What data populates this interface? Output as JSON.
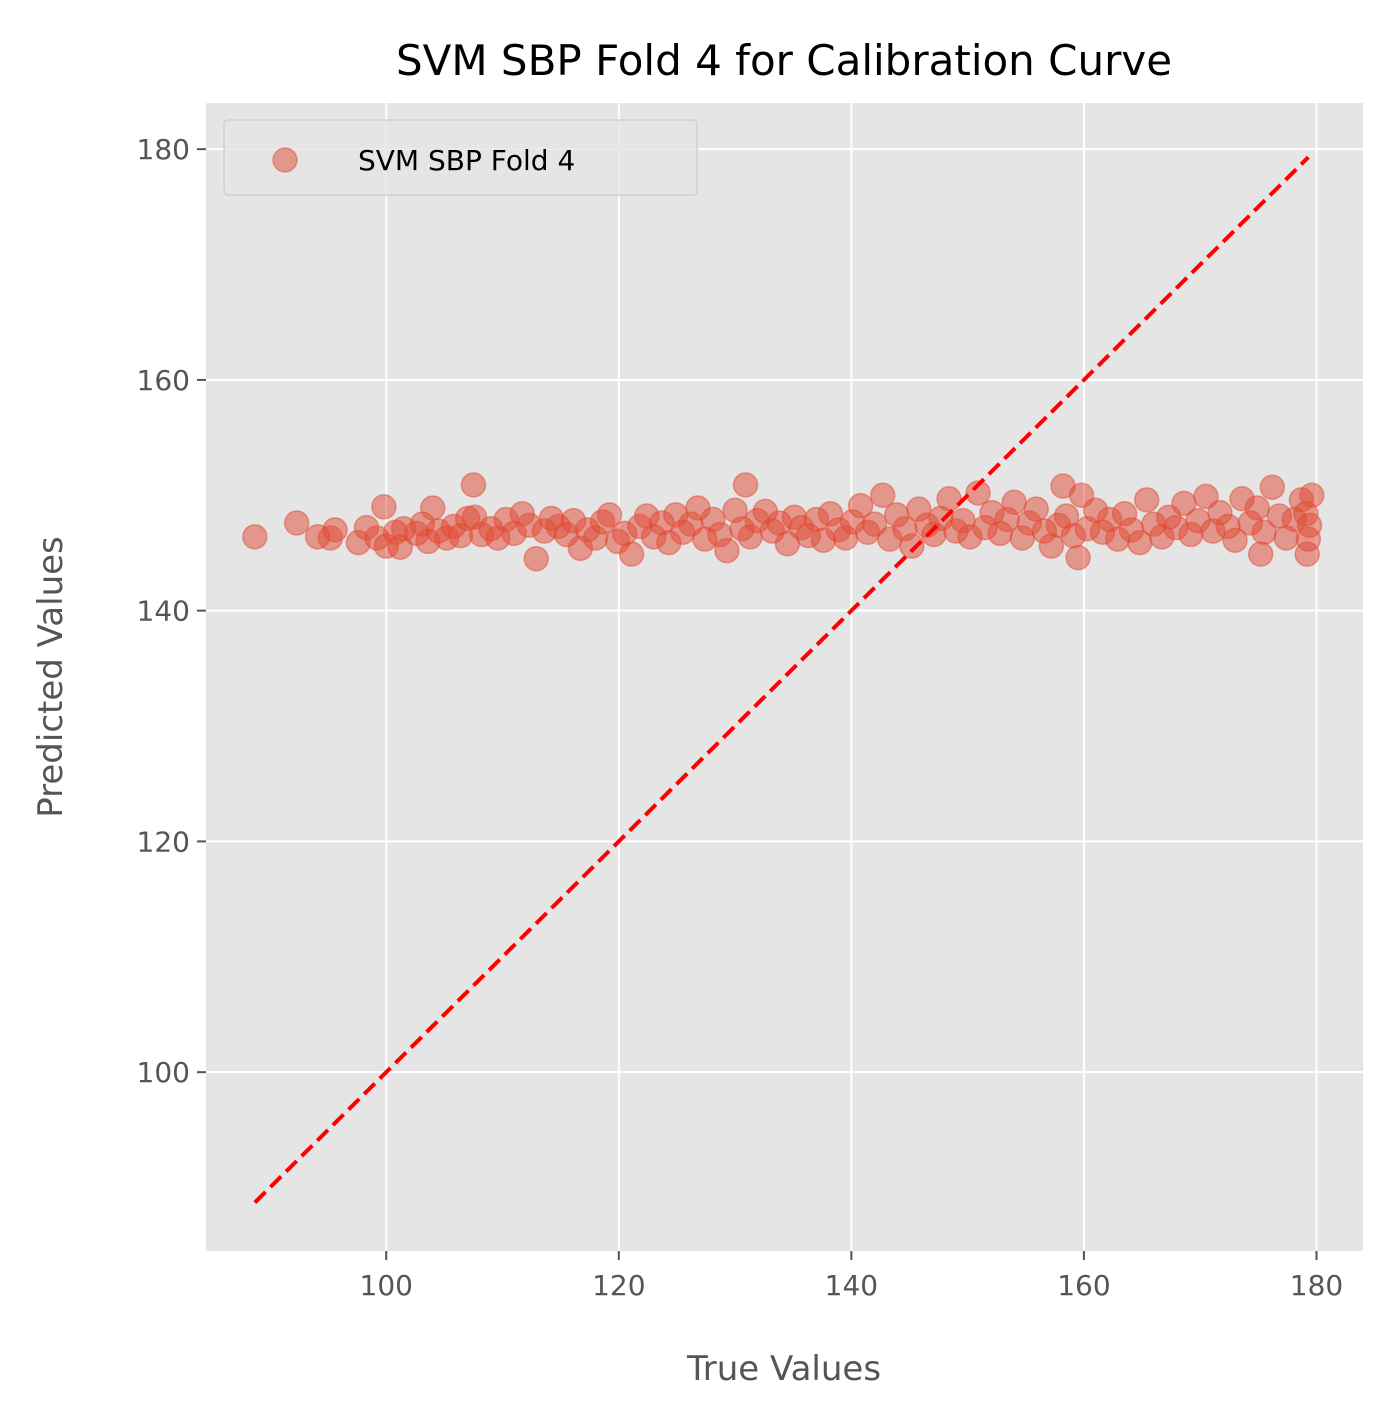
{
  "chart_data": {
    "type": "scatter",
    "title": "SVM SBP Fold 4 for Calibration Curve",
    "xlabel": "True Values",
    "ylabel": "Predicted Values",
    "xlim": [
      84.5,
      184
    ],
    "ylim": [
      84.5,
      184
    ],
    "xticks": [
      100,
      120,
      140,
      160,
      180
    ],
    "yticks": [
      100,
      120,
      140,
      160,
      180
    ],
    "grid": true,
    "legend_position": "upper-left",
    "colors": {
      "background": "#e5e5e5",
      "grid": "#ffffff",
      "points": "#e24a33",
      "reference_line": "#ff0000"
    },
    "series": [
      {
        "name": "SVM SBP Fold 4",
        "points": [
          [
            88.7,
            146.4
          ],
          [
            92.3,
            147.6
          ],
          [
            94.1,
            146.4
          ],
          [
            95.6,
            147.0
          ],
          [
            95.2,
            146.3
          ],
          [
            97.6,
            145.9
          ],
          [
            98.3,
            147.2
          ],
          [
            99.2,
            146.3
          ],
          [
            99.8,
            149.0
          ],
          [
            100.0,
            145.6
          ],
          [
            100.8,
            146.8
          ],
          [
            101.5,
            147.1
          ],
          [
            101.2,
            145.5
          ],
          [
            102.6,
            146.7
          ],
          [
            103.1,
            147.5
          ],
          [
            103.6,
            146.0
          ],
          [
            104.0,
            148.9
          ],
          [
            104.5,
            146.9
          ],
          [
            105.2,
            146.3
          ],
          [
            105.8,
            147.3
          ],
          [
            106.4,
            146.5
          ],
          [
            107.0,
            148.0
          ],
          [
            107.5,
            150.9
          ],
          [
            107.6,
            148.1
          ],
          [
            108.2,
            146.6
          ],
          [
            109.0,
            147.1
          ],
          [
            109.6,
            146.3
          ],
          [
            110.3,
            147.9
          ],
          [
            111.0,
            146.7
          ],
          [
            111.7,
            148.4
          ],
          [
            112.3,
            147.4
          ],
          [
            112.9,
            144.5
          ],
          [
            113.6,
            146.9
          ],
          [
            114.2,
            148.0
          ],
          [
            114.8,
            147.3
          ],
          [
            115.5,
            146.6
          ],
          [
            116.1,
            147.8
          ],
          [
            116.7,
            145.4
          ],
          [
            117.3,
            147.0
          ],
          [
            118.0,
            146.3
          ],
          [
            118.6,
            147.7
          ],
          [
            119.2,
            148.3
          ],
          [
            119.9,
            146.0
          ],
          [
            120.5,
            146.7
          ],
          [
            121.1,
            144.9
          ],
          [
            121.8,
            147.3
          ],
          [
            122.4,
            148.2
          ],
          [
            123.0,
            146.4
          ],
          [
            123.7,
            147.6
          ],
          [
            124.3,
            145.9
          ],
          [
            124.9,
            148.3
          ],
          [
            125.5,
            146.8
          ],
          [
            126.2,
            147.5
          ],
          [
            126.8,
            148.9
          ],
          [
            127.4,
            146.2
          ],
          [
            128.1,
            147.9
          ],
          [
            128.7,
            146.6
          ],
          [
            129.3,
            145.2
          ],
          [
            130.0,
            148.7
          ],
          [
            130.6,
            147.1
          ],
          [
            130.9,
            150.9
          ],
          [
            131.3,
            146.4
          ],
          [
            131.9,
            147.8
          ],
          [
            132.6,
            148.6
          ],
          [
            133.2,
            146.9
          ],
          [
            133.8,
            147.6
          ],
          [
            134.5,
            145.8
          ],
          [
            135.1,
            148.1
          ],
          [
            135.7,
            147.2
          ],
          [
            136.3,
            146.5
          ],
          [
            137.0,
            147.9
          ],
          [
            137.6,
            146.1
          ],
          [
            138.2,
            148.4
          ],
          [
            138.9,
            147.0
          ],
          [
            139.5,
            146.3
          ],
          [
            140.1,
            147.7
          ],
          [
            140.8,
            149.1
          ],
          [
            141.4,
            146.8
          ],
          [
            142.0,
            147.5
          ],
          [
            142.7,
            150.0
          ],
          [
            143.3,
            146.2
          ],
          [
            143.9,
            148.3
          ],
          [
            144.6,
            147.1
          ],
          [
            145.2,
            145.6
          ],
          [
            145.8,
            148.8
          ],
          [
            146.5,
            147.4
          ],
          [
            147.1,
            146.6
          ],
          [
            147.7,
            148.0
          ],
          [
            148.4,
            149.7
          ],
          [
            149.0,
            146.9
          ],
          [
            149.6,
            147.8
          ],
          [
            150.2,
            146.4
          ],
          [
            150.9,
            150.2
          ],
          [
            151.5,
            147.2
          ],
          [
            152.1,
            148.5
          ],
          [
            152.8,
            146.7
          ],
          [
            153.4,
            147.9
          ],
          [
            154.0,
            149.4
          ],
          [
            154.7,
            146.3
          ],
          [
            155.3,
            147.6
          ],
          [
            155.9,
            148.8
          ],
          [
            156.6,
            146.9
          ],
          [
            157.2,
            145.6
          ],
          [
            157.8,
            147.4
          ],
          [
            158.2,
            150.8
          ],
          [
            158.5,
            148.2
          ],
          [
            159.1,
            146.5
          ],
          [
            159.5,
            144.6
          ],
          [
            159.8,
            150.0
          ],
          [
            160.3,
            147.1
          ],
          [
            161.0,
            148.7
          ],
          [
            161.6,
            146.8
          ],
          [
            162.2,
            147.9
          ],
          [
            162.9,
            146.2
          ],
          [
            163.5,
            148.4
          ],
          [
            164.1,
            147.0
          ],
          [
            164.8,
            145.9
          ],
          [
            165.4,
            149.6
          ],
          [
            166.0,
            147.5
          ],
          [
            166.7,
            146.4
          ],
          [
            167.3,
            148.1
          ],
          [
            167.9,
            147.2
          ],
          [
            168.6,
            149.3
          ],
          [
            169.2,
            146.6
          ],
          [
            169.8,
            147.8
          ],
          [
            170.5,
            149.9
          ],
          [
            171.1,
            146.9
          ],
          [
            171.7,
            148.5
          ],
          [
            172.4,
            147.3
          ],
          [
            173.0,
            146.1
          ],
          [
            173.6,
            149.7
          ],
          [
            174.3,
            147.6
          ],
          [
            174.9,
            148.9
          ],
          [
            175.2,
            144.9
          ],
          [
            175.5,
            146.8
          ],
          [
            176.2,
            150.7
          ],
          [
            176.8,
            148.2
          ],
          [
            177.4,
            146.3
          ],
          [
            178.1,
            147.9
          ],
          [
            178.7,
            149.6
          ],
          [
            179.2,
            144.9
          ],
          [
            179.3,
            146.2
          ],
          [
            179.4,
            147.4
          ],
          [
            179.6,
            150.0
          ],
          [
            179.1,
            148.4
          ]
        ]
      }
    ],
    "reference_line": {
      "x": [
        88.7,
        179.3
      ],
      "y": [
        88.7,
        179.3
      ],
      "style": "dashed"
    }
  }
}
